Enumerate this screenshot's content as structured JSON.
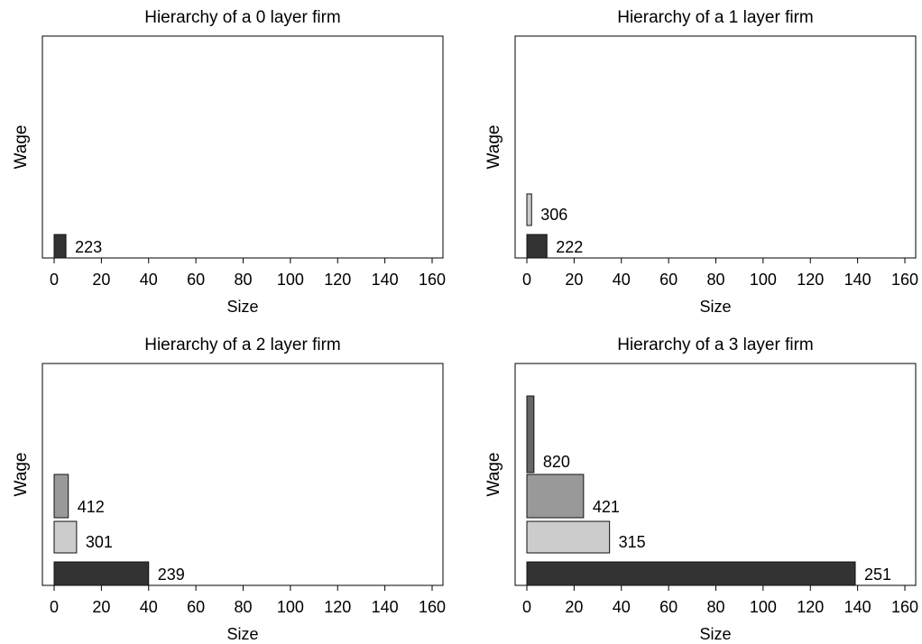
{
  "chart_data": [
    {
      "type": "bar",
      "title": "Hierarchy of a 0 layer firm",
      "xlabel": "Size",
      "ylabel": "Wage",
      "xlim": [
        0,
        160
      ],
      "xticks": [
        "0",
        "20",
        "40",
        "60",
        "80",
        "100",
        "120",
        "140",
        "160"
      ],
      "grid": false,
      "bars": [
        {
          "layer": 0,
          "size": 5,
          "wage": 223,
          "label": "223",
          "color": "#333333"
        }
      ]
    },
    {
      "type": "bar",
      "title": "Hierarchy of a 1 layer firm",
      "xlabel": "Size",
      "ylabel": "Wage",
      "xlim": [
        0,
        160
      ],
      "xticks": [
        "0",
        "20",
        "40",
        "60",
        "80",
        "100",
        "120",
        "140",
        "160"
      ],
      "grid": false,
      "bars": [
        {
          "layer": 0,
          "size": 8.5,
          "wage": 222,
          "label": "222",
          "color": "#333333"
        },
        {
          "layer": 1,
          "size": 2,
          "wage": 306,
          "label": "306",
          "color": "#cccccc"
        }
      ]
    },
    {
      "type": "bar",
      "title": "Hierarchy of a 2 layer firm",
      "xlabel": "Size",
      "ylabel": "Wage",
      "xlim": [
        0,
        160
      ],
      "xticks": [
        "0",
        "20",
        "40",
        "60",
        "80",
        "100",
        "120",
        "140",
        "160"
      ],
      "grid": false,
      "bars": [
        {
          "layer": 0,
          "size": 40,
          "wage": 239,
          "label": "239",
          "color": "#333333"
        },
        {
          "layer": 1,
          "size": 9.5,
          "wage": 301,
          "label": "301",
          "color": "#cccccc"
        },
        {
          "layer": 2,
          "size": 6,
          "wage": 412,
          "label": "412",
          "color": "#999999"
        }
      ]
    },
    {
      "type": "bar",
      "title": "Hierarchy of a 3 layer firm",
      "xlabel": "Size",
      "ylabel": "Wage",
      "xlim": [
        0,
        160
      ],
      "xticks": [
        "0",
        "20",
        "40",
        "60",
        "80",
        "100",
        "120",
        "140",
        "160"
      ],
      "grid": false,
      "bars": [
        {
          "layer": 0,
          "size": 139,
          "wage": 251,
          "label": "251",
          "color": "#333333"
        },
        {
          "layer": 1,
          "size": 35,
          "wage": 315,
          "label": "315",
          "color": "#cccccc"
        },
        {
          "layer": 2,
          "size": 24,
          "wage": 421,
          "label": "421",
          "color": "#999999"
        },
        {
          "layer": 3,
          "size": 3,
          "wage": 820,
          "label": "820",
          "color": "#666666"
        }
      ]
    }
  ]
}
